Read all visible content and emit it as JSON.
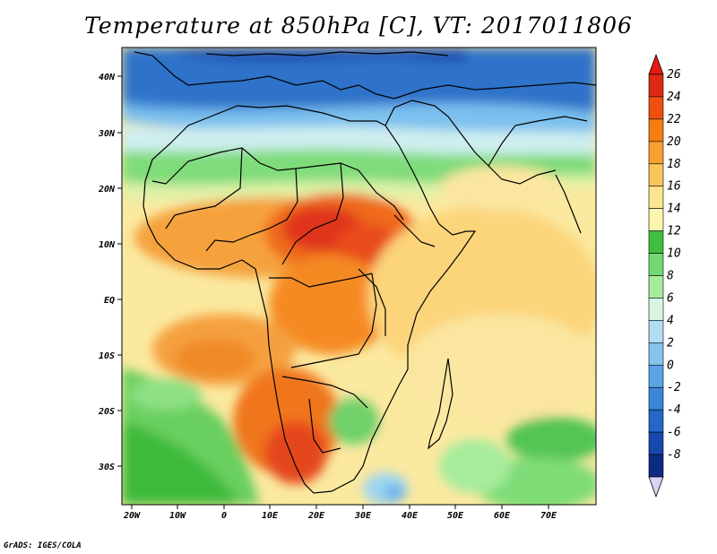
{
  "title": "Temperature at 850hPa [C], VT: 2017011806",
  "footer": "GrADS: IGES/COLA",
  "map": {
    "lon_labels": [
      "20W",
      "10W",
      "0",
      "10E",
      "20E",
      "30E",
      "40E",
      "50E",
      "60E",
      "70E"
    ],
    "lat_labels": [
      "40N",
      "30N",
      "20N",
      "10N",
      "EQ",
      "10S",
      "20S",
      "30S"
    ]
  },
  "colorbar": {
    "labels": [
      "26",
      "24",
      "22",
      "20",
      "18",
      "16",
      "14",
      "12",
      "10",
      "8",
      "6",
      "4",
      "2",
      "0",
      "-2",
      "-4",
      "-6",
      "-8"
    ],
    "colors": [
      "#dd2a14",
      "#f0500f",
      "#f57d12",
      "#f8a030",
      "#fac55a",
      "#fde48f",
      "#fbf5ad",
      "#3fbf3f",
      "#73d873",
      "#a7ec9c",
      "#d8f5e4",
      "#b2dcf4",
      "#86c4ee",
      "#5aa4e4",
      "#3a86d9",
      "#2467c9",
      "#1848ae",
      "#0e2a82"
    ],
    "top_triangle_color": "#e81a10",
    "bottom_triangle_color": "#d9d4f2"
  }
}
